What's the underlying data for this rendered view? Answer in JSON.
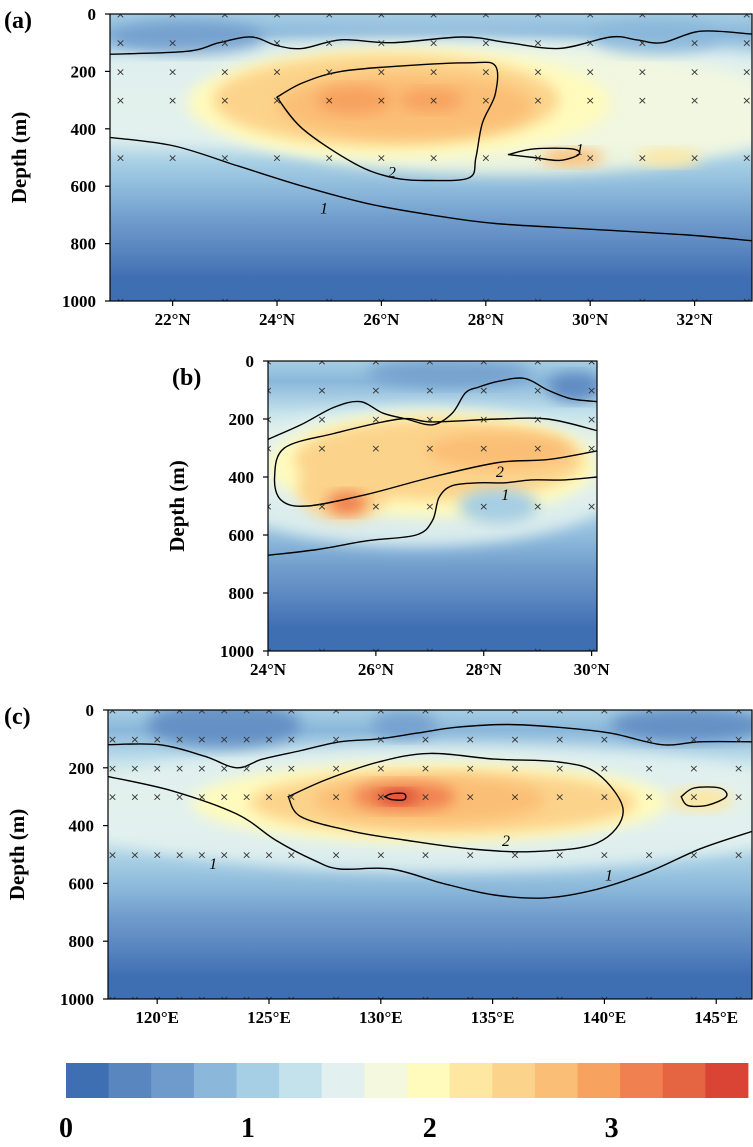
{
  "palette": [
    "#3f6fb3",
    "#5a86c0",
    "#6f9bcc",
    "#8ab7da",
    "#a6cee4",
    "#c4e2ec",
    "#e2f1ef",
    "#f3f8df",
    "#fffbbd",
    "#fde7a1",
    "#fcd38b",
    "#fbbe76",
    "#f7a25f",
    "#f0804f",
    "#e56543",
    "#d94434"
  ],
  "colorbar": {
    "ticks": [
      {
        "value": 0,
        "label": "0"
      },
      {
        "value": 1,
        "label": "1"
      },
      {
        "value": 2,
        "label": "2"
      },
      {
        "value": 3,
        "label": "3"
      }
    ],
    "range": [
      0,
      3.75
    ]
  },
  "chart_data": [
    {
      "type": "heatmap",
      "panel_label": "(a)",
      "xlabel": "",
      "ylabel": "Depth (m)",
      "xlim": [
        20.8,
        33.1
      ],
      "ylim": [
        0,
        1000
      ],
      "xticks": [
        {
          "value": 22,
          "label": "22°N"
        },
        {
          "value": 24,
          "label": "24°N"
        },
        {
          "value": 26,
          "label": "26°N"
        },
        {
          "value": 28,
          "label": "28°N"
        },
        {
          "value": 30,
          "label": "30°N"
        },
        {
          "value": 32,
          "label": "32°N"
        }
      ],
      "yticks": [
        {
          "value": 0,
          "label": "0"
        },
        {
          "value": 200,
          "label": "200"
        },
        {
          "value": 400,
          "label": "400"
        },
        {
          "value": 600,
          "label": "600"
        },
        {
          "value": 800,
          "label": "800"
        },
        {
          "value": 1000,
          "label": "1000"
        }
      ],
      "contour_labels": [
        {
          "x": 26.2,
          "y": 570,
          "text": "2"
        },
        {
          "x": 24.9,
          "y": 695,
          "text": "1"
        },
        {
          "x": 29.8,
          "y": 490,
          "text": "1"
        }
      ],
      "station_x": [
        21,
        22,
        23,
        24,
        25,
        26,
        27,
        28,
        29,
        30,
        31,
        32,
        33
      ],
      "station_depths": [
        0,
        100,
        200,
        300,
        500,
        1000
      ]
    },
    {
      "type": "heatmap",
      "panel_label": "(b)",
      "xlabel": "",
      "ylabel": "Depth (m)",
      "xlim": [
        24,
        30.1
      ],
      "ylim": [
        0,
        1000
      ],
      "xticks": [
        {
          "value": 24,
          "label": "24°N"
        },
        {
          "value": 26,
          "label": "26°N"
        },
        {
          "value": 28,
          "label": "28°N"
        },
        {
          "value": 30,
          "label": "30°N"
        }
      ],
      "yticks": [
        {
          "value": 0,
          "label": "0"
        },
        {
          "value": 200,
          "label": "200"
        },
        {
          "value": 400,
          "label": "400"
        },
        {
          "value": 600,
          "label": "600"
        },
        {
          "value": 800,
          "label": "800"
        },
        {
          "value": 1000,
          "label": "1000"
        }
      ],
      "contour_labels": [
        {
          "x": 28.3,
          "y": 400,
          "text": "2"
        },
        {
          "x": 28.4,
          "y": 480,
          "text": "1"
        }
      ],
      "station_x": [
        24,
        25,
        26,
        27,
        28,
        29,
        30
      ],
      "station_depths": [
        0,
        100,
        200,
        300,
        500,
        1000
      ]
    },
    {
      "type": "heatmap",
      "panel_label": "(c)",
      "xlabel": "",
      "ylabel": "Depth (m)",
      "xlim": [
        117.8,
        146.6
      ],
      "ylim": [
        0,
        1000
      ],
      "xticks": [
        {
          "value": 120,
          "label": "120°E"
        },
        {
          "value": 125,
          "label": "125°E"
        },
        {
          "value": 130,
          "label": "130°E"
        },
        {
          "value": 135,
          "label": "135°E"
        },
        {
          "value": 140,
          "label": "140°E"
        },
        {
          "value": 145,
          "label": "145°E"
        }
      ],
      "yticks": [
        {
          "value": 0,
          "label": "0"
        },
        {
          "value": 200,
          "label": "200"
        },
        {
          "value": 400,
          "label": "400"
        },
        {
          "value": 600,
          "label": "600"
        },
        {
          "value": 800,
          "label": "800"
        },
        {
          "value": 1000,
          "label": "1000"
        }
      ],
      "contour_labels": [
        {
          "x": 135.6,
          "y": 470,
          "text": "2"
        },
        {
          "x": 122.5,
          "y": 550,
          "text": "1"
        },
        {
          "x": 140.2,
          "y": 590,
          "text": "1"
        }
      ],
      "station_x": [
        118,
        119,
        120,
        121,
        122,
        123,
        124,
        125,
        126,
        128,
        130,
        132,
        134,
        136,
        138,
        140,
        142,
        144,
        146
      ],
      "station_depths": [
        0,
        100,
        200,
        300,
        500,
        1000
      ]
    }
  ]
}
